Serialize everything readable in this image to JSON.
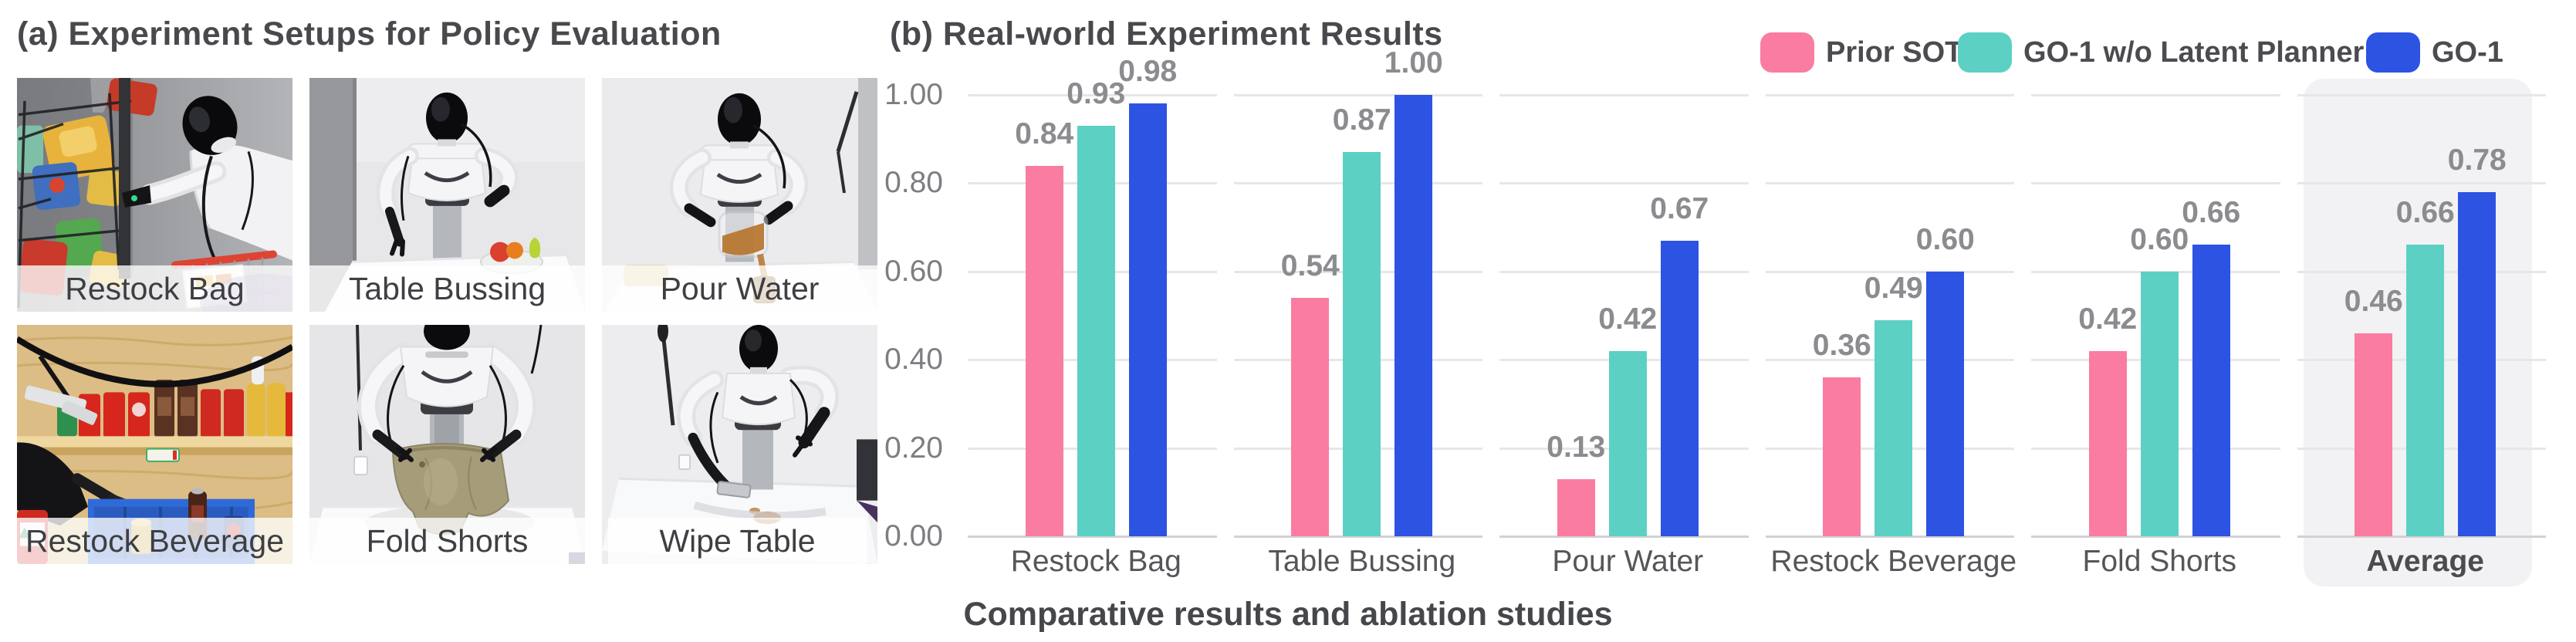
{
  "panel_a": {
    "title": "(a) Experiment Setups for Policy Evaluation",
    "setups": [
      {
        "label": "Restock Bag"
      },
      {
        "label": "Table Bussing"
      },
      {
        "label": "Pour Water"
      },
      {
        "label": "Restock Beverage"
      },
      {
        "label": "Fold Shorts"
      },
      {
        "label": "Wipe Table"
      }
    ]
  },
  "panel_b": {
    "title": "(b) Real-world Experiment Results",
    "caption": "Comparative results and ablation studies"
  },
  "legend": {
    "items": [
      {
        "label": "Prior SOTA",
        "color": "#FA7CA1"
      },
      {
        "label": "GO-1 w/o Latent Planner",
        "color": "#5DD0C4"
      },
      {
        "label": "GO-1",
        "color": "#2D53E3"
      }
    ]
  },
  "chart_data": {
    "type": "bar",
    "title": "(b) Real-world Experiment Results",
    "categories": [
      "Restock Bag",
      "Table Bussing",
      "Pour Water",
      "Restock Beverage",
      "Fold Shorts",
      "Average"
    ],
    "series": [
      {
        "name": "Prior SOTA",
        "color": "#FA7CA1",
        "values": [
          0.84,
          0.54,
          0.13,
          0.36,
          0.42,
          0.46
        ]
      },
      {
        "name": "GO-1 w/o Latent Planner",
        "color": "#5DD0C4",
        "values": [
          0.93,
          0.87,
          0.42,
          0.49,
          0.6,
          0.66
        ]
      },
      {
        "name": "GO-1",
        "color": "#2D53E3",
        "values": [
          0.98,
          1.0,
          0.67,
          0.6,
          0.66,
          0.78
        ]
      }
    ],
    "xlabel": "",
    "ylabel": "",
    "ylim": [
      0,
      1
    ],
    "y_ticks": [
      "0.00",
      "0.20",
      "0.40",
      "0.60",
      "0.80",
      "1.00"
    ],
    "grid": true,
    "legend_position": "top-right",
    "highlighted_category": "Average",
    "value_labels": true
  }
}
